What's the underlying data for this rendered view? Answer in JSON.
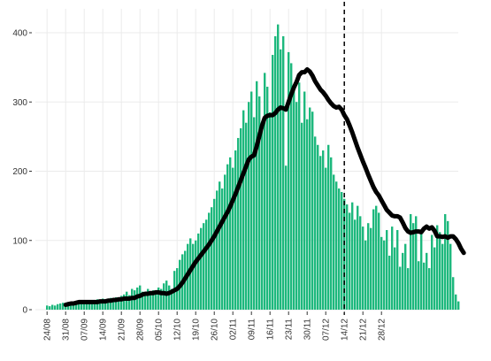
{
  "chart_data": {
    "type": "bar",
    "title": "",
    "xlabel": "",
    "ylabel": "",
    "ylim": [
      0,
      420
    ],
    "yticks": [
      0,
      100,
      200,
      300,
      400
    ],
    "grid": true,
    "legend": "none",
    "x_start_date": "2020-08-24",
    "x_tick_labels": [
      "24/08",
      "31/08",
      "07/09",
      "14/09",
      "21/09",
      "28/09",
      "05/10",
      "12/10",
      "19/10",
      "26/10",
      "02/11",
      "09/11",
      "16/11",
      "23/11",
      "30/11",
      "07/12",
      "14/12",
      "21/12",
      "28/12"
    ],
    "vline_label_date": "14/12",
    "colors": {
      "bars": "#1db87d",
      "line": "#000000",
      "grid": "#ebebeb",
      "vline": "#000000"
    },
    "series": [
      {
        "name": "daily",
        "type": "bar",
        "values": [
          6,
          5,
          7,
          6,
          8,
          9,
          10,
          8,
          11,
          9,
          10,
          12,
          11,
          9,
          13,
          10,
          12,
          14,
          12,
          15,
          13,
          16,
          14,
          12,
          17,
          15,
          18,
          16,
          20,
          22,
          26,
          21,
          30,
          28,
          32,
          35,
          26,
          25,
          30,
          22,
          28,
          24,
          32,
          30,
          38,
          42,
          35,
          30,
          56,
          60,
          72,
          80,
          85,
          95,
          103,
          95,
          100,
          110,
          118,
          125,
          130,
          140,
          148,
          160,
          172,
          185,
          175,
          195,
          210,
          220,
          205,
          230,
          248,
          262,
          288,
          270,
          300,
          315,
          278,
          330,
          308,
          265,
          342,
          322,
          285,
          368,
          395,
          412,
          376,
          395,
          208,
          372,
          356,
          322,
          300,
          328,
          270,
          315,
          275,
          292,
          286,
          250,
          238,
          222,
          230,
          205,
          238,
          220,
          195,
          185,
          175,
          170,
          160,
          152,
          140,
          155,
          130,
          150,
          135,
          120,
          100,
          125,
          118,
          145,
          150,
          140,
          105,
          100,
          115,
          78,
          120,
          90,
          115,
          62,
          82,
          95,
          60,
          138,
          125,
          135,
          70,
          112,
          68,
          82,
          60,
          108,
          90,
          122,
          112,
          95,
          138,
          128,
          95,
          47,
          22,
          12
        ]
      },
      {
        "name": "7-day average",
        "type": "line",
        "start_index": 7,
        "values": [
          7,
          8,
          9,
          9,
          10,
          11,
          11,
          11,
          11,
          11,
          11,
          11,
          11,
          12,
          12,
          12,
          13,
          13,
          14,
          14,
          15,
          15,
          16,
          16,
          16,
          17,
          17,
          19,
          20,
          22,
          23,
          23,
          24,
          24,
          25,
          25,
          24,
          24,
          23,
          24,
          26,
          28,
          30,
          34,
          39,
          45,
          51,
          57,
          63,
          69,
          74,
          79,
          84,
          89,
          94,
          100,
          106,
          113,
          120,
          127,
          134,
          141,
          149,
          158,
          167,
          177,
          187,
          197,
          207,
          217,
          221,
          223,
          236,
          251,
          266,
          277,
          280,
          281,
          281,
          284,
          289,
          292,
          291,
          289,
          300,
          311,
          321,
          329,
          339,
          343,
          343,
          347,
          344,
          338,
          330,
          324,
          318,
          314,
          309,
          303,
          298,
          294,
          292,
          293,
          289,
          281,
          275,
          266,
          256,
          245,
          234,
          224,
          214,
          205,
          195,
          186,
          177,
          170,
          165,
          158,
          151,
          144,
          140,
          136,
          135,
          135,
          133,
          126,
          118,
          113,
          111,
          112,
          113,
          113,
          112,
          117,
          120,
          117,
          119,
          114,
          106,
          106,
          105,
          106,
          104,
          106,
          106,
          102,
          96,
          88,
          82
        ]
      }
    ]
  }
}
